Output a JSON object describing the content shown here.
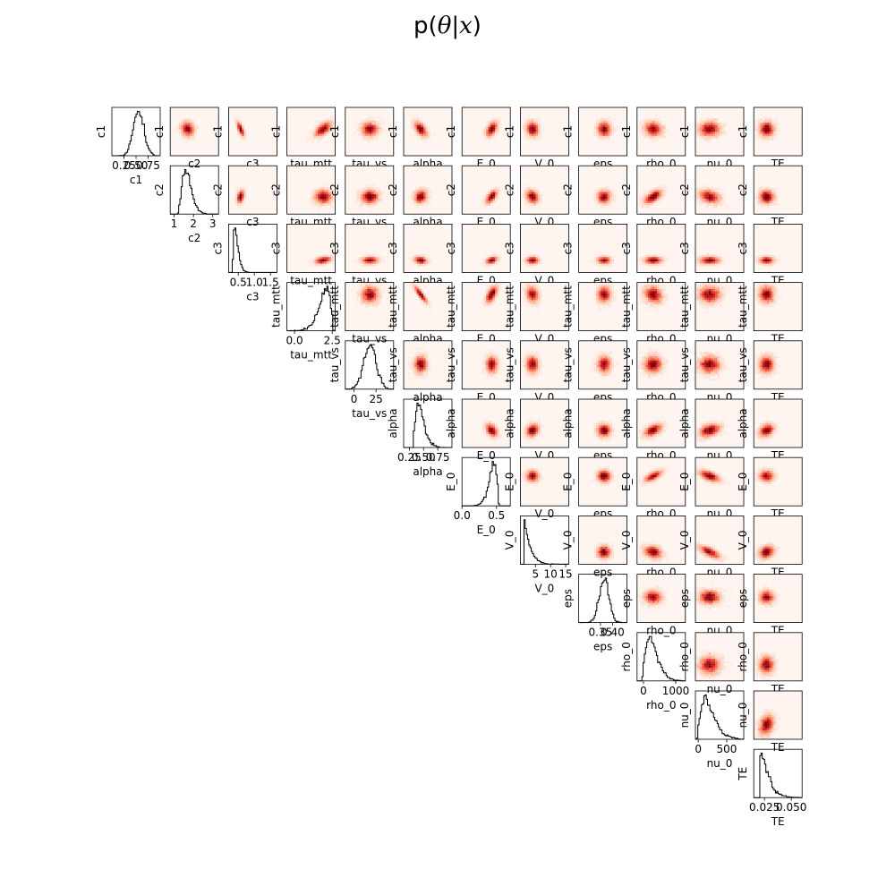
{
  "title": {
    "prefix": "p(",
    "theta": "θ",
    "bar": "|",
    "x": "x",
    "suffix": ")"
  },
  "chart_data": {
    "type": "corner",
    "title": "p(θ|x)",
    "parameters": [
      "c1",
      "c2",
      "c3",
      "tau_mtt",
      "tau_vs",
      "alpha",
      "E_0",
      "V_0",
      "eps",
      "rho_0",
      "nu_0",
      "TE"
    ],
    "histogram_color": "#000000",
    "density_colormap": "Reds",
    "marginals": [
      {
        "param": "c1",
        "xlim": [
          0.0,
          1.0
        ],
        "ticks": [
          0.25,
          0.5,
          0.75
        ],
        "tick_labels": [
          "0.25",
          "0.50",
          "0.75"
        ],
        "mean": 0.55,
        "sd": 0.11,
        "skew": 0
      },
      {
        "param": "c2",
        "xlim": [
          0.8,
          3.3
        ],
        "ticks": [
          1,
          2,
          3
        ],
        "tick_labels": [
          "1",
          "2",
          "3"
        ],
        "mean": 1.7,
        "sd": 0.25,
        "skew": 0.4
      },
      {
        "param": "c3",
        "xlim": [
          0.2,
          1.7
        ],
        "ticks": [
          0.5,
          1.0,
          1.5
        ],
        "tick_labels": [
          "0.5",
          "1.0",
          "1.5"
        ],
        "mean": 0.45,
        "sd": 0.08,
        "skew": 0.6
      },
      {
        "param": "tau_mtt",
        "xlim": [
          -0.5,
          2.7
        ],
        "ticks": [
          0.0,
          2.5
        ],
        "tick_labels": [
          "0.0",
          "2.5"
        ],
        "mean": 1.9,
        "sd": 0.4,
        "skew": -0.5
      },
      {
        "param": "tau_vs",
        "xlim": [
          -10,
          45
        ],
        "ticks": [
          0,
          25
        ],
        "tick_labels": [
          "0",
          "25"
        ],
        "mean": 18,
        "sd": 7,
        "skew": 0
      },
      {
        "param": "alpha",
        "xlim": [
          0.15,
          1.0
        ],
        "ticks": [
          0.25,
          0.5,
          0.75
        ],
        "tick_labels": [
          "0.25",
          "0.50",
          "0.75"
        ],
        "mean": 0.45,
        "sd": 0.08,
        "skew": 0.5
      },
      {
        "param": "E_0",
        "xlim": [
          0.0,
          0.7
        ],
        "ticks": [
          0.0,
          0.5
        ],
        "tick_labels": [
          "0.0",
          "0.5"
        ],
        "mean": 0.43,
        "sd": 0.06,
        "skew": -0.5
      },
      {
        "param": "V_0",
        "xlim": [
          0,
          16
        ],
        "ticks": [
          5,
          10,
          15
        ],
        "tick_labels": [
          "5",
          "10",
          "15"
        ],
        "mean": 3,
        "sd": 1.5,
        "skew": 0.9
      },
      {
        "param": "eps",
        "xlim": [
          0.26,
          0.46
        ],
        "ticks": [
          0.35,
          0.4
        ],
        "tick_labels": [
          "0.35",
          "0.40"
        ],
        "mean": 0.365,
        "sd": 0.02,
        "skew": 0
      },
      {
        "param": "rho_0",
        "xlim": [
          -200,
          1300
        ],
        "ticks": [
          0,
          1000
        ],
        "tick_labels": [
          "0",
          "1000"
        ],
        "mean": 300,
        "sd": 200,
        "skew": 0.5
      },
      {
        "param": "nu_0",
        "xlim": [
          -50,
          800
        ],
        "ticks": [
          0,
          500
        ],
        "tick_labels": [
          "0",
          "500"
        ],
        "mean": 200,
        "sd": 130,
        "skew": 0.5
      },
      {
        "param": "TE",
        "xlim": [
          0.015,
          0.06
        ],
        "ticks": [
          0.025,
          0.05
        ],
        "tick_labels": [
          "0.025",
          "0.050"
        ],
        "mean": 0.027,
        "sd": 0.005,
        "skew": 0.8
      }
    ],
    "correlations": {
      "c1": {
        "c2": -0.1,
        "c3": -0.75,
        "tau_mtt": 0.6,
        "tau_vs": 0.0,
        "alpha": -0.55,
        "E_0": 0.5,
        "V_0": -0.1,
        "eps": 0.0,
        "rho_0": -0.1,
        "nu_0": 0.0,
        "TE": 0.0
      },
      "c2": {
        "c3": 0.3,
        "tau_mtt": 0.0,
        "tau_vs": 0.0,
        "alpha": 0.1,
        "E_0": 0.6,
        "V_0": -0.2,
        "eps": 0.0,
        "rho_0": 0.6,
        "nu_0": -0.3,
        "TE": 0.0
      },
      "c3": {
        "tau_mtt": 0.4,
        "tau_vs": 0.0,
        "alpha": -0.2,
        "E_0": 0.4,
        "V_0": 0.0,
        "eps": 0.0,
        "rho_0": 0.0,
        "nu_0": 0.0,
        "TE": 0.0
      },
      "tau_mtt": {
        "tau_vs": 0.0,
        "alpha": -0.9,
        "E_0": 0.6,
        "V_0": -0.2,
        "eps": 0.0,
        "rho_0": -0.2,
        "nu_0": 0.0,
        "TE": 0.0
      },
      "tau_vs": {
        "alpha": 0.0,
        "E_0": 0.0,
        "V_0": 0.0,
        "eps": 0.0,
        "rho_0": 0.0,
        "nu_0": 0.0,
        "TE": 0.0
      },
      "alpha": {
        "E_0": -0.4,
        "V_0": 0.2,
        "eps": 0.0,
        "rho_0": 0.5,
        "nu_0": 0.3,
        "TE": 0.3
      },
      "E_0": {
        "V_0": 0.0,
        "eps": 0.0,
        "rho_0": 0.7,
        "nu_0": -0.6,
        "TE": 0.0
      },
      "V_0": {
        "eps": 0.0,
        "rho_0": -0.2,
        "nu_0": -0.7,
        "TE": 0.2
      },
      "eps": {
        "rho_0": 0.0,
        "nu_0": 0.0,
        "TE": 0.0
      },
      "rho_0": {
        "nu_0": 0.0,
        "TE": 0.0
      },
      "nu_0": {
        "TE": 0.3
      }
    },
    "offdiag_ylabels": "row parameter",
    "offdiag_xlabels": "column parameter"
  }
}
